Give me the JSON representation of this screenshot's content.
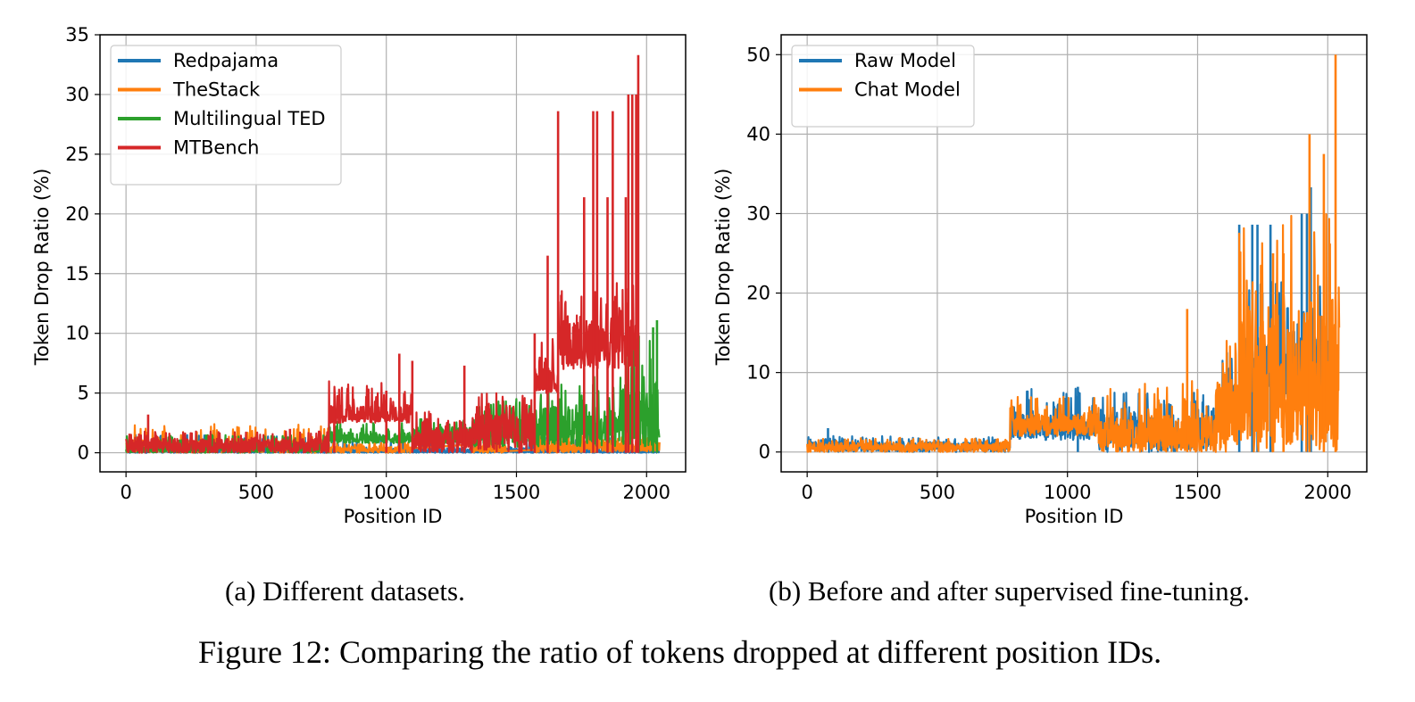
{
  "figure": {
    "caption": "Figure 12: Comparing the ratio of tokens dropped at different position IDs.",
    "subcaptions": [
      "(a) Different datasets.",
      "(b) Before and after supervised fine-tuning."
    ]
  },
  "chart_data": [
    {
      "id": "a",
      "type": "line",
      "title": "",
      "xlabel": "Position ID",
      "ylabel": "Token Drop Ratio (%)",
      "xlim": [
        -100,
        2150
      ],
      "ylim": [
        -1.6,
        35
      ],
      "xticks": [
        0,
        500,
        1000,
        1500,
        2000
      ],
      "yticks": [
        0,
        5,
        10,
        15,
        20,
        25,
        30,
        35
      ],
      "grid": true,
      "legend_position": "upper-left",
      "series": [
        {
          "name": "Redpajama",
          "color": "#1f77b4",
          "segments": [
            [
              0,
              2050,
              0,
              1.5,
              0.2
            ]
          ],
          "spikes": [
            [
              1700,
              0.8
            ],
            [
              1750,
              0.8
            ],
            [
              1800,
              0.8
            ],
            [
              1850,
              0.8
            ],
            [
              1900,
              0.8
            ],
            [
              1920,
              1.0
            ]
          ]
        },
        {
          "name": "TheStack",
          "color": "#ff7f0e",
          "segments": [
            [
              0,
              780,
              0,
              2.4,
              0.7
            ],
            [
              780,
              1100,
              0,
              1.0,
              0.4
            ],
            [
              1330,
              1460,
              0,
              1.5,
              0.5
            ],
            [
              1570,
              2050,
              0,
              2.0,
              0.8
            ]
          ],
          "spikes": [
            [
              1700,
              3.2
            ],
            [
              1750,
              2.5
            ],
            [
              1800,
              2.0
            ],
            [
              1870,
              2.0
            ],
            [
              1930,
              3.5
            ]
          ]
        },
        {
          "name": "Multilingual TED",
          "color": "#2ca02c",
          "segments": [
            [
              0,
              780,
              0,
              1.5,
              0.6
            ],
            [
              780,
              1100,
              0.8,
              2.6,
              1.5
            ],
            [
              1100,
              1330,
              0.8,
              3.0,
              1.8
            ],
            [
              1330,
              1570,
              0.5,
              4.5,
              2.3
            ],
            [
              1570,
              1900,
              0.5,
              6.5,
              3.0
            ],
            [
              1900,
              2050,
              0.5,
              9.5,
              4.5
            ]
          ],
          "spikes": [
            [
              1970,
              9.8
            ],
            [
              2025,
              10.5
            ],
            [
              2040,
              11.1
            ]
          ]
        },
        {
          "name": "MTBench",
          "color": "#d62728",
          "segments": [
            [
              0,
              780,
              0,
              1.8,
              0.9
            ],
            [
              780,
              1100,
              2.5,
              6.0,
              3.5
            ],
            [
              1100,
              1330,
              0,
              3.5,
              1.5
            ],
            [
              1330,
              1570,
              0,
              5.0,
              2.5
            ],
            [
              1570,
              1660,
              5.0,
              10.0,
              7.0
            ],
            [
              1660,
              1970,
              7.0,
              14.3,
              10.0
            ]
          ],
          "spikes": [
            [
              85,
              3.2
            ],
            [
              630,
              2.0
            ],
            [
              800,
              3.8
            ],
            [
              1000,
              5.2
            ],
            [
              1050,
              8.3
            ],
            [
              1100,
              7.7
            ],
            [
              1300,
              7.3
            ],
            [
              1570,
              10.0
            ],
            [
              1620,
              16.5
            ],
            [
              1660,
              28.6
            ],
            [
              1760,
              21.4
            ],
            [
              1795,
              28.6
            ],
            [
              1810,
              28.6
            ],
            [
              1850,
              21.4
            ],
            [
              1870,
              28.6
            ],
            [
              1920,
              21.4
            ],
            [
              1930,
              30.0
            ],
            [
              1945,
              30.0
            ],
            [
              1960,
              30.0
            ],
            [
              1968,
              33.3
            ]
          ]
        }
      ]
    },
    {
      "id": "b",
      "type": "line",
      "title": "",
      "xlabel": "Position ID",
      "ylabel": "Token Drop Ratio (%)",
      "xlim": [
        -100,
        2150
      ],
      "ylim": [
        -2.5,
        52.5
      ],
      "xticks": [
        0,
        500,
        1000,
        1500,
        2000
      ],
      "yticks": [
        0,
        10,
        20,
        30,
        40,
        50
      ],
      "grid": true,
      "legend_position": "upper-left",
      "series": [
        {
          "name": "Raw Model",
          "color": "#1f77b4",
          "segments": [
            [
              0,
              780,
              0,
              2.0,
              1.0
            ],
            [
              780,
              1120,
              1.5,
              8.0,
              4.0
            ],
            [
              1120,
              1570,
              0,
              8.0,
              3.5
            ],
            [
              1570,
              1660,
              3.0,
              13.0,
              7.0
            ],
            [
              1660,
              2000,
              6.0,
              22.0,
              12.0
            ]
          ],
          "spikes": [
            [
              80,
              3.0
            ],
            [
              1040,
              8.2
            ],
            [
              1660,
              28.6
            ],
            [
              1710,
              28.6
            ],
            [
              1730,
              28.6
            ],
            [
              1780,
              28.6
            ],
            [
              1900,
              30.0
            ],
            [
              1920,
              30.0
            ],
            [
              1935,
              33.3
            ]
          ]
        },
        {
          "name": "Chat Model",
          "color": "#ff7f0e",
          "segments": [
            [
              0,
              780,
              0,
              1.8,
              0.9
            ],
            [
              780,
              1120,
              2.0,
              7.0,
              4.0
            ],
            [
              1120,
              1570,
              0,
              9.0,
              3.5
            ],
            [
              1570,
              1660,
              0,
              14.0,
              7.0
            ],
            [
              1660,
              2045,
              0,
              30.0,
              14.0
            ]
          ],
          "spikes": [
            [
              1460,
              18.0
            ],
            [
              1790,
              25.0
            ],
            [
              1830,
              25.0
            ],
            [
              1930,
              40.0
            ],
            [
              1985,
              37.5
            ],
            [
              2030,
              50.0
            ],
            [
              2040,
              0.0
            ]
          ]
        }
      ]
    }
  ]
}
